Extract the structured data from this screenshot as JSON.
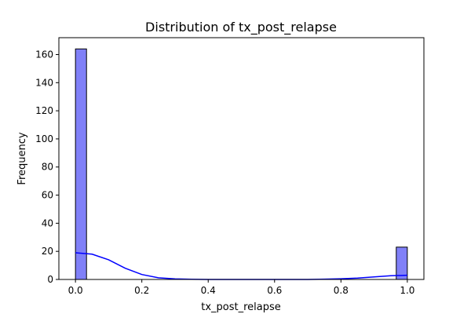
{
  "chart_data": {
    "type": "bar",
    "title": "Distribution of tx_post_relapse",
    "xlabel": "tx_post_relapse",
    "ylabel": "Frequency",
    "xlim": [
      -0.05,
      1.05
    ],
    "ylim": [
      0,
      172
    ],
    "x_ticks": [
      0.0,
      0.2,
      0.4,
      0.6,
      0.8,
      1.0
    ],
    "x_tick_labels": [
      "0.0",
      "0.2",
      "0.4",
      "0.6",
      "0.8",
      "1.0"
    ],
    "y_ticks": [
      0,
      20,
      40,
      60,
      80,
      100,
      120,
      140,
      160
    ],
    "y_tick_labels": [
      "0",
      "20",
      "40",
      "60",
      "80",
      "100",
      "120",
      "140",
      "160"
    ],
    "grid": false,
    "bins": [
      {
        "x0": 0.0,
        "x1": 0.0333,
        "count": 164
      },
      {
        "x0": 0.9667,
        "x1": 1.0,
        "count": 23
      }
    ],
    "kde": {
      "x": [
        0.0,
        0.05,
        0.1,
        0.15,
        0.2,
        0.25,
        0.3,
        0.35,
        0.4,
        0.5,
        0.6,
        0.7,
        0.75,
        0.8,
        0.85,
        0.9,
        0.95,
        1.0
      ],
      "y": [
        19,
        18,
        14,
        8,
        3.5,
        1.2,
        0.4,
        0.1,
        0.0,
        0.0,
        0.0,
        0.0,
        0.2,
        0.5,
        1.0,
        1.8,
        2.6,
        3
      ]
    },
    "colors": {
      "bar_fill": "#8080f8",
      "bar_edge": "#000000",
      "kde_line": "#0000ff",
      "axes": "#000000"
    }
  }
}
